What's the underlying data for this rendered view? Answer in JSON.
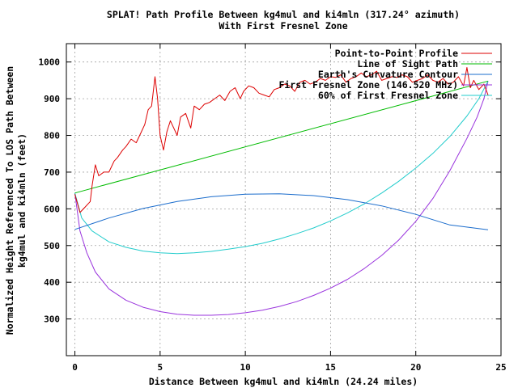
{
  "chart_data": {
    "type": "line",
    "title_lines": [
      "SPLAT! Path Profile Between kg4mul and ki4mln (317.24° azimuth)",
      "With First Fresnel Zone"
    ],
    "xlabel": "Distance Between kg4mul and ki4mln (24.24 miles)",
    "ylabel_lines": [
      "Normalized Height Referenced To LOS Path Between",
      "kg4mul and ki4mln (feet)"
    ],
    "xlim": [
      -0.5,
      25
    ],
    "ylim": [
      200,
      1050
    ],
    "x_ticks": [
      0,
      5,
      10,
      15,
      20,
      25
    ],
    "y_ticks": [
      300,
      400,
      500,
      600,
      700,
      800,
      900,
      1000
    ],
    "grid": true,
    "legend_position": "top-right",
    "colors": {
      "profile": "#dd0000",
      "los": "#00bb00",
      "curvature": "#1a6ccc",
      "fresnel": "#9933dd",
      "fresnel60": "#22cccc"
    },
    "series": [
      {
        "name": "Point-to-Point Profile",
        "key": "profile",
        "x": [
          0,
          0.3,
          0.6,
          0.9,
          1.0,
          1.2,
          1.4,
          1.7,
          2.0,
          2.3,
          2.5,
          2.8,
          3.0,
          3.3,
          3.6,
          3.9,
          4.1,
          4.3,
          4.5,
          4.7,
          4.85,
          5.0,
          5.2,
          5.4,
          5.6,
          5.8,
          6.0,
          6.2,
          6.5,
          6.8,
          7.0,
          7.3,
          7.6,
          7.9,
          8.2,
          8.5,
          8.8,
          9.1,
          9.4,
          9.7,
          9.9,
          10.2,
          10.5,
          10.8,
          11.1,
          11.4,
          11.7,
          12.0,
          12.3,
          12.6,
          12.9,
          13.2,
          13.5,
          13.8,
          14.1,
          14.4,
          14.7,
          15.0,
          15.3,
          15.6,
          15.9,
          16.2,
          16.5,
          16.8,
          17.1,
          17.4,
          17.7,
          18.0,
          18.3,
          18.6,
          18.9,
          19.2,
          19.5,
          19.8,
          20.1,
          20.4,
          20.7,
          21.0,
          21.3,
          21.6,
          21.9,
          22.2,
          22.5,
          22.8,
          23.0,
          23.2,
          23.4,
          23.7,
          24.0,
          24.24
        ],
        "y": [
          640,
          590,
          605,
          620,
          660,
          720,
          690,
          700,
          700,
          730,
          740,
          760,
          770,
          790,
          780,
          810,
          830,
          870,
          880,
          960,
          900,
          800,
          760,
          810,
          840,
          820,
          800,
          850,
          860,
          820,
          880,
          870,
          885,
          890,
          900,
          910,
          895,
          920,
          930,
          900,
          920,
          935,
          930,
          915,
          910,
          905,
          925,
          930,
          940,
          935,
          920,
          945,
          950,
          940,
          945,
          955,
          950,
          960,
          958,
          965,
          945,
          955,
          960,
          970,
          960,
          965,
          975,
          950,
          955,
          960,
          958,
          965,
          960,
          945,
          950,
          955,
          965,
          950,
          945,
          955,
          940,
          945,
          960,
          935,
          985,
          930,
          950,
          925,
          940,
          910
        ]
      },
      {
        "name": "Line of Sight Path",
        "key": "los",
        "x": [
          0,
          24.24
        ],
        "y": [
          643,
          948
        ]
      },
      {
        "name": "Earth's Curvature Contour",
        "key": "curvature",
        "x": [
          0,
          2,
          4,
          6,
          8,
          10,
          12,
          14,
          16,
          18,
          20,
          22,
          24.24
        ],
        "y": [
          544,
          575,
          601,
          620,
          633,
          640,
          641,
          636,
          625,
          608,
          585,
          556,
          543
        ]
      },
      {
        "name": "First Fresnel Zone (146.520 MHz)",
        "key": "fresnel",
        "x": [
          0,
          0.3,
          0.7,
          1.2,
          2,
          3,
          4,
          5,
          6,
          7,
          8,
          9,
          10,
          11,
          12,
          13,
          14,
          15,
          16,
          17,
          18,
          19,
          20,
          21,
          22,
          23,
          23.6,
          24,
          24.24
        ],
        "y": [
          643,
          540,
          480,
          428,
          382,
          351,
          332,
          320,
          313,
          310,
          310,
          312,
          317,
          324,
          334,
          347,
          364,
          384,
          408,
          438,
          473,
          515,
          566,
          628,
          704,
          792,
          850,
          900,
          948
        ]
      },
      {
        "name": "60% of First Fresnel Zone",
        "key": "fresnel60",
        "x": [
          0,
          0.4,
          1,
          2,
          3,
          4,
          5,
          6,
          7,
          8,
          9,
          10,
          11,
          12,
          13,
          14,
          15,
          16,
          17,
          18,
          19,
          20,
          21,
          22,
          23,
          23.7,
          24.24
        ],
        "y": [
          643,
          575,
          540,
          510,
          495,
          485,
          480,
          478,
          480,
          484,
          490,
          497,
          506,
          518,
          532,
          548,
          567,
          589,
          614,
          643,
          675,
          711,
          751,
          797,
          853,
          900,
          948
        ]
      }
    ]
  }
}
